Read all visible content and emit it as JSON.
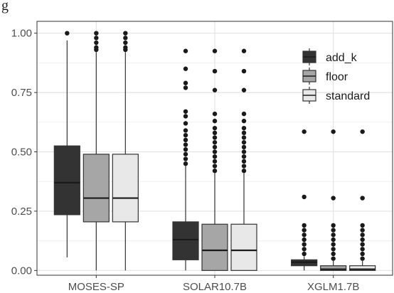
{
  "header_fragment": "g",
  "chart_data": {
    "type": "boxplot",
    "ylim": [
      -0.02,
      1.05
    ],
    "y_ticks": [
      0.0,
      0.25,
      0.5,
      0.75,
      1.0
    ],
    "y_tick_labels": [
      "0.00",
      "0.25",
      "0.50",
      "0.75",
      "1.00"
    ],
    "categories": [
      "MOSES-SP",
      "SOLAR10.7B",
      "XGLM1.7B"
    ],
    "grid": true,
    "legend_position": "right",
    "series": [
      {
        "name": "add_k",
        "color": "#333333"
      },
      {
        "name": "floor",
        "color": "#a6a6a6"
      },
      {
        "name": "standard",
        "color": "#e8e8e8"
      }
    ],
    "boxes": [
      [
        {
          "q1": 0.235,
          "median": 0.37,
          "q3": 0.525,
          "whisker_low": 0.055,
          "whisker_high": 0.97,
          "outliers": [
            1.0
          ]
        },
        {
          "q1": 0.205,
          "median": 0.305,
          "q3": 0.49,
          "whisker_low": 0.0,
          "whisker_high": 0.92,
          "outliers": [
            0.93,
            0.94,
            0.96,
            0.98,
            1.0
          ]
        },
        {
          "q1": 0.205,
          "median": 0.305,
          "q3": 0.49,
          "whisker_low": 0.0,
          "whisker_high": 0.92,
          "outliers": [
            0.93,
            0.94,
            0.96,
            0.98,
            1.0
          ]
        }
      ],
      [
        {
          "q1": 0.045,
          "median": 0.13,
          "q3": 0.205,
          "whisker_low": 0.0,
          "whisker_high": 0.44,
          "outliers": [
            0.45,
            0.47,
            0.49,
            0.51,
            0.53,
            0.55,
            0.57,
            0.59,
            0.62,
            0.65,
            0.67,
            0.77,
            0.79,
            0.85,
            0.925
          ]
        },
        {
          "q1": 0.0,
          "median": 0.085,
          "q3": 0.195,
          "whisker_low": 0.0,
          "whisker_high": 0.41,
          "outliers": [
            0.42,
            0.44,
            0.46,
            0.48,
            0.5,
            0.52,
            0.54,
            0.56,
            0.58,
            0.6,
            0.63,
            0.66,
            0.76,
            0.84,
            0.925
          ]
        },
        {
          "q1": 0.0,
          "median": 0.085,
          "q3": 0.195,
          "whisker_low": 0.0,
          "whisker_high": 0.41,
          "outliers": [
            0.42,
            0.44,
            0.46,
            0.48,
            0.5,
            0.52,
            0.54,
            0.56,
            0.58,
            0.6,
            0.63,
            0.66,
            0.76,
            0.84,
            0.925
          ]
        }
      ],
      [
        {
          "q1": 0.02,
          "median": 0.035,
          "q3": 0.045,
          "whisker_low": 0.0,
          "whisker_high": 0.06,
          "outliers": [
            0.07,
            0.09,
            0.11,
            0.13,
            0.15,
            0.17,
            0.19,
            0.31,
            0.585
          ]
        },
        {
          "q1": 0.0,
          "median": 0.005,
          "q3": 0.02,
          "whisker_low": 0.0,
          "whisker_high": 0.04,
          "outliers": [
            0.05,
            0.07,
            0.09,
            0.11,
            0.13,
            0.15,
            0.17,
            0.19,
            0.305,
            0.585
          ]
        },
        {
          "q1": 0.0,
          "median": 0.005,
          "q3": 0.02,
          "whisker_low": 0.0,
          "whisker_high": 0.04,
          "outliers": [
            0.05,
            0.07,
            0.09,
            0.11,
            0.13,
            0.15,
            0.17,
            0.19,
            0.305,
            0.585
          ]
        }
      ]
    ]
  }
}
